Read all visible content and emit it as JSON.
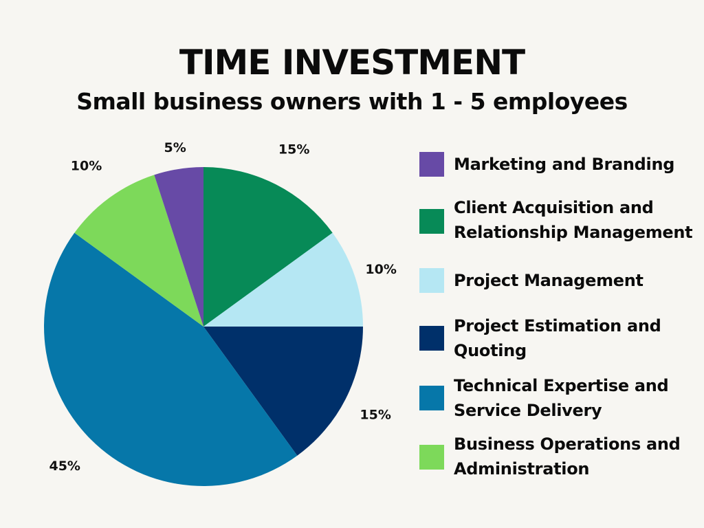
{
  "chart_data": {
    "type": "pie",
    "title": "TIME INVESTMENT",
    "subtitle": "Small business owners with 1 - 5 employees",
    "slices": [
      {
        "label": "Client Acquisition and\nRelationship Management",
        "value": 15,
        "value_label": "15%",
        "color": "#078a57"
      },
      {
        "label": "Project Management",
        "value": 10,
        "value_label": "10%",
        "color": "#b5e7f3"
      },
      {
        "label": "Project Estimation and\nQuoting",
        "value": 15,
        "value_label": "15%",
        "color": "#00306a"
      },
      {
        "label": "Technical Expertise and\nService Delivery",
        "value": 45,
        "value_label": "45%",
        "color": "#0677a9"
      },
      {
        "label": "Business Operations and\nAdministration",
        "value": 10,
        "value_label": "10%",
        "color": "#7dd95a"
      },
      {
        "label": "Marketing and Branding",
        "value": 5,
        "value_label": "5%",
        "color": "#674aa6"
      }
    ],
    "legend": [
      {
        "label": "Marketing and Branding",
        "color": "#674aa6"
      },
      {
        "label": "Client Acquisition and\nRelationship Management",
        "color": "#078a57"
      },
      {
        "label": "Project Management",
        "color": "#b5e7f3"
      },
      {
        "label": "Project Estimation and\nQuoting",
        "color": "#00306a"
      },
      {
        "label": "Technical Expertise and\nService Delivery",
        "color": "#0677a9"
      },
      {
        "label": "Business Operations and\nAdministration",
        "color": "#7dd95a"
      }
    ],
    "legend_position": "right"
  }
}
